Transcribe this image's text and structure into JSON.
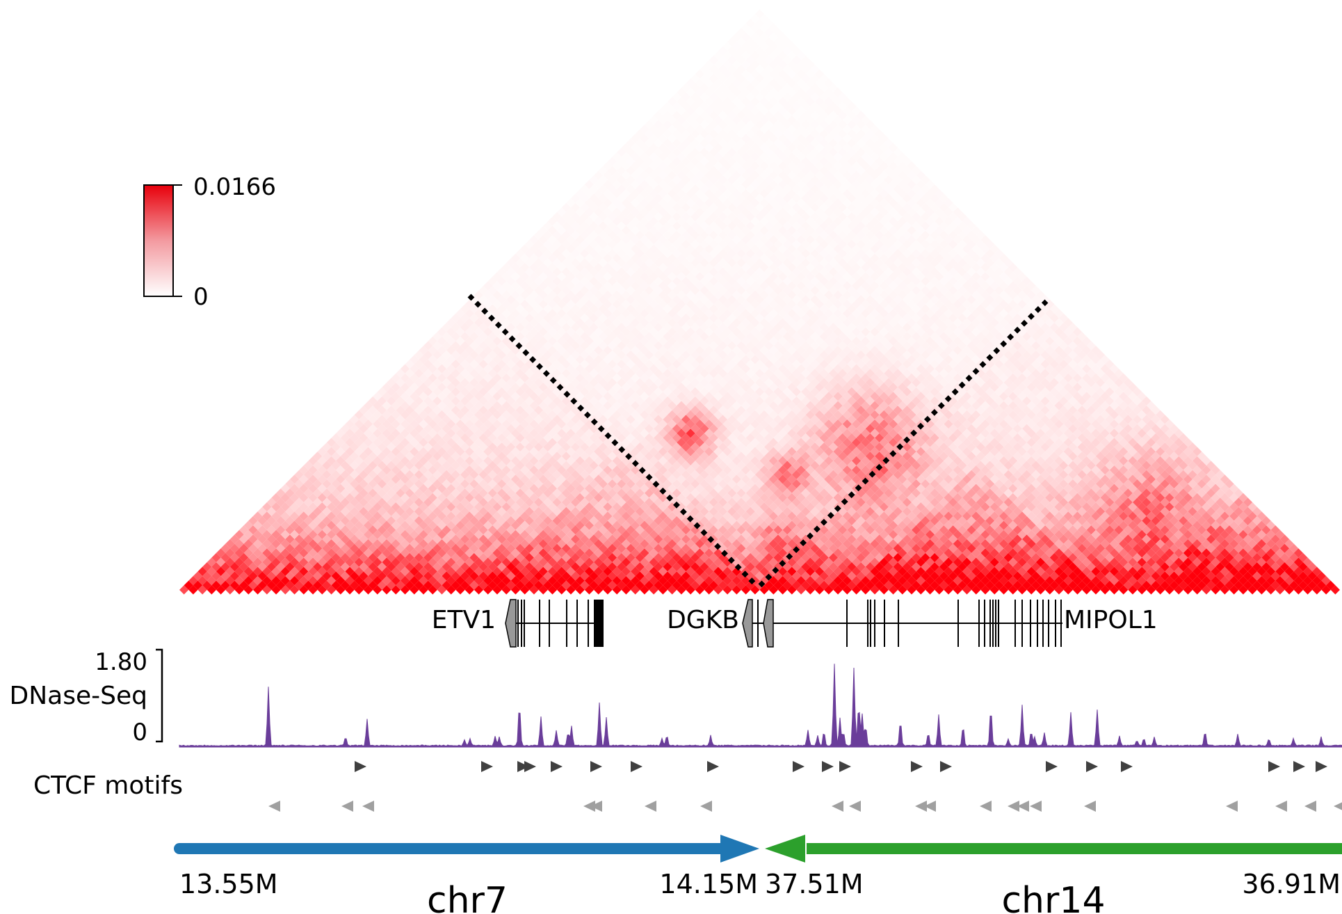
{
  "colorbar": {
    "max_label": "0.0166",
    "min_label": "0",
    "color_high": "#e8000b",
    "color_low": "#ffffff"
  },
  "genes": [
    {
      "name": "ETV1"
    },
    {
      "name": "DGKB"
    },
    {
      "name": "MIPOL1"
    }
  ],
  "dnase": {
    "track_label": "DNase-Seq",
    "max_label": "1.80",
    "min_label": "0",
    "color": "#6a3d9a"
  },
  "ctcf": {
    "track_label": "CTCF motifs",
    "forward_color": "#404040",
    "reverse_color": "#a0a0a0"
  },
  "chromosomes": [
    {
      "name": "chr7",
      "start_label": "13.55M",
      "end_label": "14.15M",
      "color": "#1f77b4",
      "direction": "forward"
    },
    {
      "name": "chr14",
      "start_label": "37.51M",
      "end_label": "36.91M",
      "color": "#2ca02c",
      "direction": "reverse"
    }
  ],
  "heatmap": {
    "type": "Hi-C contact triangle",
    "breakpoint_marker": "dotted lines"
  }
}
